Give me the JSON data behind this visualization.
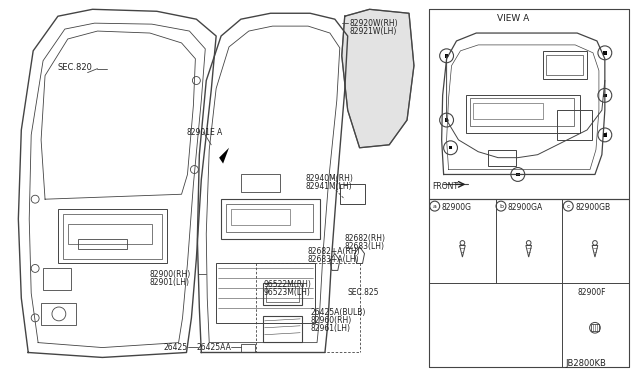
{
  "bg_color": "#ffffff",
  "line_color": "#444444",
  "text_color": "#222222",
  "diagram_id": "JB2800KB",
  "labels": {
    "sec820": "SEC.820",
    "view_a": "VIEW A",
    "front": "FRONT",
    "82920w": "82920W(RH)",
    "82921w": "82921W(LH)",
    "82901e": "82901E",
    "a_label": "A",
    "82900_rh": "82900(RH)",
    "82901_lh": "82901(LH)",
    "82940m": "82940M(RH)",
    "82941m": "82941M(LH)",
    "82682_rh": "82682(RH)",
    "82683_lh": "82683(LH)",
    "82682a": "82682+A(RH)",
    "82683a": "82683+A(LH)",
    "96522m": "96522M(RH)",
    "96523m": "96523M(LH)",
    "sec825": "SEC.825",
    "26425a": "26425A(BULB)",
    "82960": "82960(RH)",
    "82961": "82961(LH)",
    "26425": "26425",
    "26425aa": "26425AA",
    "a_82900g": "82900G",
    "b_82900ga": "82900GA",
    "c_82900gb": "82900GB",
    "82900f": "82900F"
  }
}
